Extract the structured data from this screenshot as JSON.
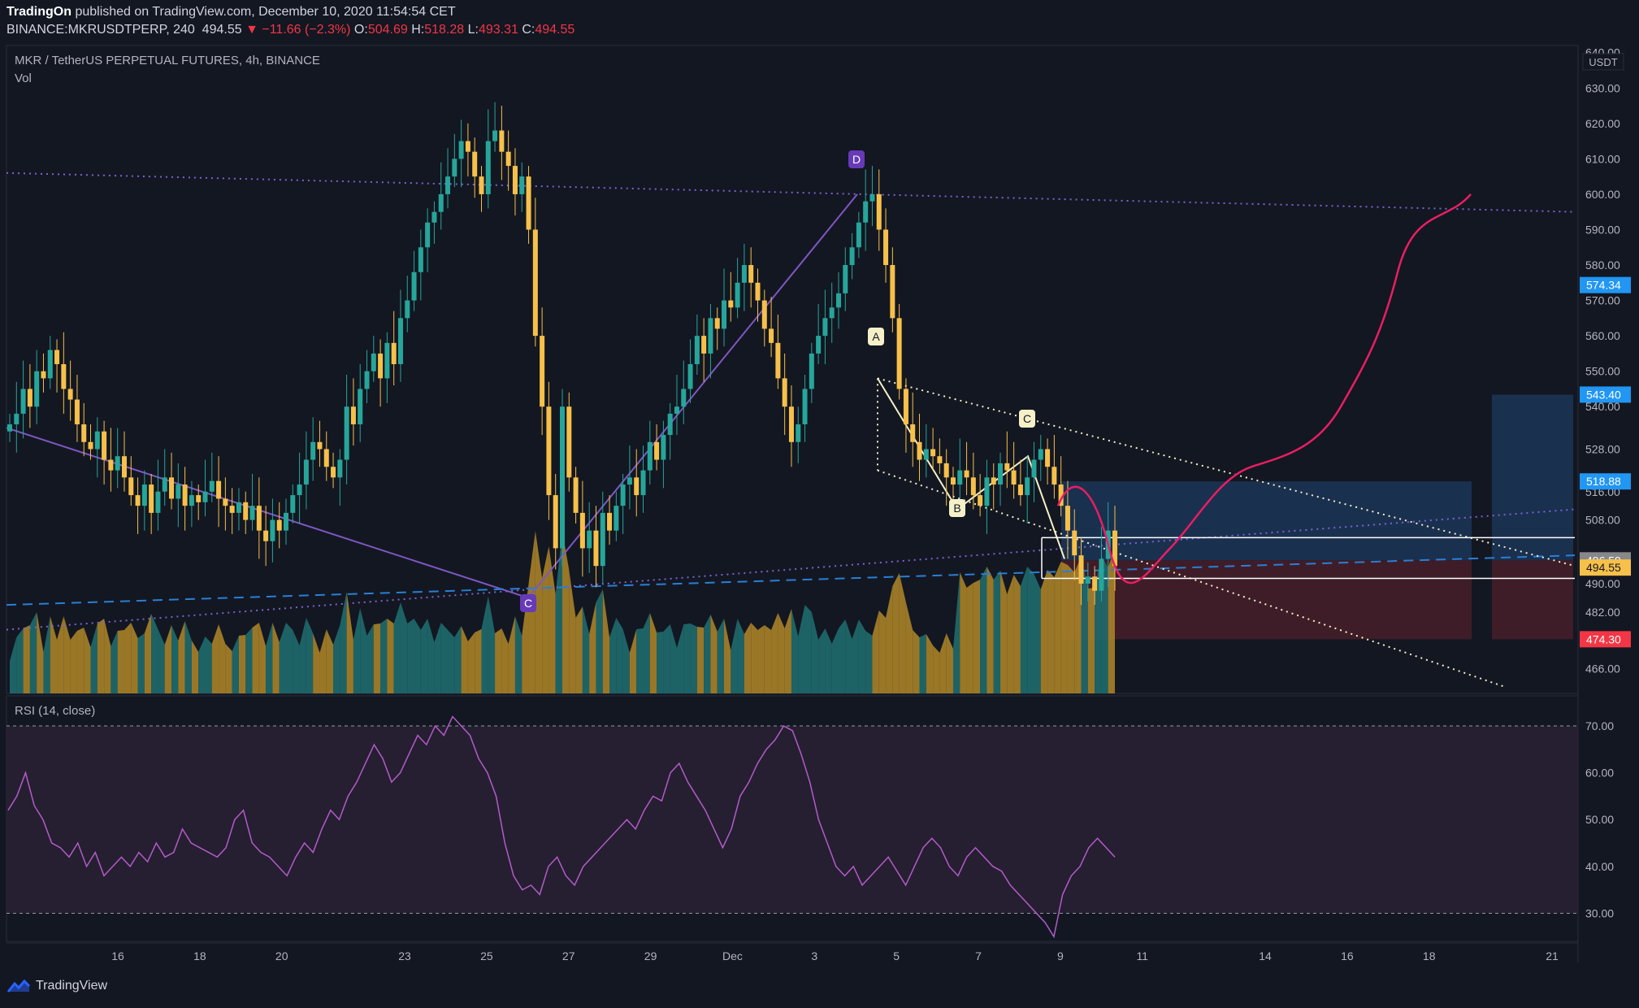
{
  "header": {
    "publisher": "TradingOn",
    "published_text": "published on TradingView.com, December 10, 2020 11:54:54 CET",
    "symbol_line": "BINANCE:MKRUSDTPERP, 240",
    "last_price": "494.55",
    "change": "−11.66 (−2.3%)",
    "open_label": "O:",
    "open": "504.69",
    "high_label": "H:",
    "high": "518.28",
    "low_label": "L:",
    "low": "493.31",
    "close_label": "C:",
    "close": "494.55"
  },
  "legend": {
    "title": "MKR / TetherUS PERPETUAL FUTURES, 4h, BINANCE",
    "volume": "Vol",
    "rsi": "RSI (14, close)"
  },
  "footer": {
    "brand": "TradingView"
  },
  "colors": {
    "background": "#131722",
    "up": "#26a69a",
    "down": "#f7c04a",
    "volume_up": "#1f6b6e",
    "volume_down": "#a88228",
    "trendline": "#7e57c2",
    "dotted_purple": "#7b63d1",
    "dashed_blue": "#2a7fd4",
    "projection": "#e91e63",
    "abc_line": "#f5f0c8",
    "rsi_line": "#b45bc8",
    "rsi_band": "#2a2236"
  },
  "chart_data": {
    "type": "candlestick",
    "price_axis": {
      "unit": "USDT",
      "ylim": [
        459,
        642
      ],
      "ticks": [
        "640.00",
        "630.00",
        "620.00",
        "610.00",
        "600.00",
        "590.00",
        "580.00",
        "570.00",
        "560.00",
        "550.00",
        "540.00",
        "528.00",
        "516.00",
        "508.00",
        "490.00",
        "482.00",
        "466.00"
      ],
      "tick_values": [
        640,
        630,
        620,
        610,
        600,
        590,
        580,
        570,
        560,
        550,
        540,
        528,
        516,
        508,
        490,
        482,
        466
      ],
      "labels": [
        {
          "text": "574.34",
          "value": 574.34,
          "color": "#2196f3"
        },
        {
          "text": "543.40",
          "value": 543.4,
          "color": "#2196f3"
        },
        {
          "text": "518.88",
          "value": 518.88,
          "color": "#2196f3"
        },
        {
          "text": "496.59",
          "value": 496.59,
          "color": "#888888"
        },
        {
          "text": "494.55",
          "value": 494.55,
          "color": "#f7c04a"
        },
        {
          "text": "474.30",
          "value": 474.3,
          "color": "#f23645"
        }
      ]
    },
    "time_axis": {
      "ticks": [
        {
          "label": "16",
          "day": 16
        },
        {
          "label": "18",
          "day": 18
        },
        {
          "label": "20",
          "day": 20
        },
        {
          "label": "23",
          "day": 23
        },
        {
          "label": "25",
          "day": 25
        },
        {
          "label": "27",
          "day": 27
        },
        {
          "label": "29",
          "day": 29
        },
        {
          "label": "Dec",
          "day": 31
        },
        {
          "label": "3",
          "day": 33
        },
        {
          "label": "5",
          "day": 35
        },
        {
          "label": "7",
          "day": 37
        },
        {
          "label": "9",
          "day": 39
        },
        {
          "label": "11",
          "day": 41
        },
        {
          "label": "14",
          "day": 44
        },
        {
          "label": "16",
          "day": 46
        },
        {
          "label": "18",
          "day": 48
        },
        {
          "label": "21",
          "day": 51
        }
      ]
    },
    "candle_closes": [
      535,
      538,
      545,
      540,
      550,
      548,
      556,
      552,
      545,
      542,
      535,
      530,
      528,
      533,
      525,
      522,
      526,
      520,
      515,
      512,
      518,
      510,
      516,
      520,
      514,
      518,
      512,
      515,
      513,
      516,
      519,
      514,
      512,
      510,
      513,
      508,
      512,
      505,
      502,
      508,
      505,
      510,
      515,
      518,
      525,
      530,
      528,
      523,
      520,
      525,
      540,
      535,
      545,
      550,
      555,
      548,
      558,
      552,
      565,
      570,
      578,
      585,
      592,
      595,
      600,
      605,
      610,
      615,
      612,
      605,
      600,
      615,
      618,
      612,
      608,
      600,
      605,
      590,
      560,
      540,
      515,
      500,
      540,
      520,
      510,
      500,
      505,
      495,
      510,
      505,
      512,
      518,
      520,
      515,
      522,
      530,
      525,
      532,
      538,
      540,
      545,
      552,
      560,
      555,
      565,
      562,
      570,
      568,
      575,
      580,
      575,
      570,
      562,
      558,
      548,
      540,
      530,
      535,
      545,
      555,
      560,
      565,
      568,
      572,
      580,
      585,
      592,
      598,
      600,
      590,
      580,
      565,
      545,
      535,
      530,
      525,
      528,
      526,
      524,
      520,
      518,
      522,
      520,
      515,
      512,
      520,
      518,
      524,
      522,
      518,
      515,
      520,
      525,
      528,
      523,
      518,
      512,
      505,
      498,
      490,
      492,
      488,
      497,
      505,
      495
    ],
    "current_close": 494.55,
    "annotations": [
      {
        "text": "A"
      },
      {
        "text": "B"
      },
      {
        "text": "C"
      },
      {
        "text": "D"
      },
      {
        "text": "C"
      }
    ],
    "rsi": {
      "ylim": [
        24,
        74
      ],
      "ticks": [
        "70.00",
        "60.00",
        "50.00",
        "40.00",
        "30.00"
      ],
      "tick_values": [
        70,
        60,
        50,
        40,
        30
      ],
      "upper": 70,
      "lower": 30,
      "values": [
        52,
        55,
        60,
        53,
        50,
        45,
        44,
        42,
        45,
        40,
        43,
        38,
        40,
        42,
        40,
        43,
        41,
        45,
        42,
        43,
        48,
        45,
        44,
        43,
        42,
        44,
        50,
        52,
        45,
        43,
        42,
        40,
        38,
        42,
        45,
        43,
        48,
        52,
        50,
        55,
        58,
        62,
        66,
        63,
        58,
        60,
        64,
        68,
        66,
        70,
        68,
        72,
        70,
        68,
        63,
        60,
        55,
        45,
        38,
        35,
        36,
        34,
        40,
        42,
        38,
        36,
        40,
        42,
        44,
        46,
        48,
        50,
        48,
        52,
        55,
        54,
        60,
        62,
        58,
        55,
        52,
        48,
        44,
        48,
        55,
        58,
        62,
        65,
        67,
        70,
        69,
        64,
        58,
        50,
        45,
        40,
        38,
        40,
        36,
        38,
        40,
        42,
        39,
        36,
        40,
        44,
        46,
        44,
        40,
        38,
        42,
        44,
        42,
        40,
        39,
        36,
        34,
        32,
        30,
        28,
        25,
        34,
        38,
        40,
        44,
        46,
        44,
        42
      ]
    }
  }
}
